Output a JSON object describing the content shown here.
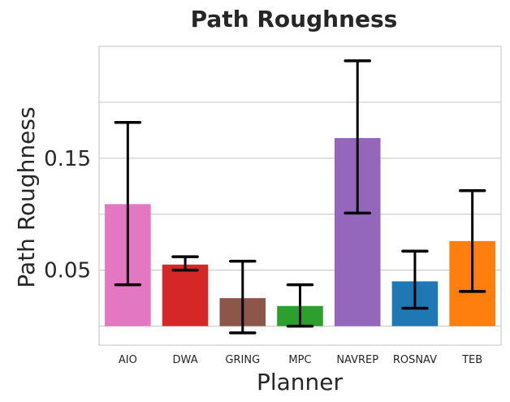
{
  "chart_data": {
    "type": "bar",
    "title": "Path Roughness",
    "xlabel": "Planner",
    "ylabel": "Path Roughness",
    "categories": [
      "AIO",
      "DWA",
      "GRING",
      "MPC",
      "NAVREP",
      "ROSNAV",
      "TEB"
    ],
    "values": [
      0.109,
      0.055,
      0.025,
      0.018,
      0.168,
      0.04,
      0.076
    ],
    "error_low": [
      0.037,
      0.05,
      -0.006,
      0.0,
      0.101,
      0.016,
      0.031
    ],
    "error_high": [
      0.182,
      0.062,
      0.058,
      0.037,
      0.237,
      0.067,
      0.121
    ],
    "colors": [
      "#e377c2",
      "#d62728",
      "#8c564b",
      "#2ca02c",
      "#9467bd",
      "#1f77b4",
      "#ff7f0e"
    ],
    "ylim": [
      -0.017,
      0.25
    ],
    "yticks": [
      0.05,
      0.15
    ],
    "ytick_labels": [
      "0.05",
      "0.15"
    ],
    "ygrid": [
      0.0,
      0.05,
      0.1,
      0.15,
      0.2
    ],
    "grid": true
  }
}
